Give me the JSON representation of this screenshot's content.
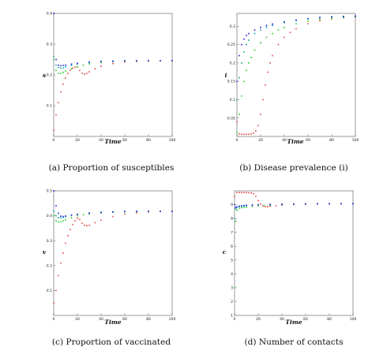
{
  "series_colors": {
    "red": "#e8504a",
    "green": "#33cc33",
    "blue": "#2a2ae0",
    "cyan": "#17a6a6"
  },
  "chart_data": [
    {
      "type": "scatter",
      "caption": "(a) Proportion of susceptibles",
      "xlabel": "Time",
      "ylabel": "s",
      "xlim": [
        0,
        100
      ],
      "ylim": [
        0,
        0.4
      ],
      "xticks": [
        0,
        20,
        40,
        60,
        80,
        100
      ],
      "yticks": [
        0.1,
        0.2,
        0.3,
        0.4
      ],
      "series": [
        {
          "color": "red",
          "x": [
            0,
            2,
            4,
            6,
            8,
            10,
            12,
            14,
            16,
            18,
            20,
            22,
            24,
            26,
            28,
            30,
            35,
            40,
            50,
            60,
            70,
            80,
            90,
            100
          ],
          "y": [
            0.02,
            0.07,
            0.11,
            0.145,
            0.17,
            0.19,
            0.205,
            0.215,
            0.222,
            0.225,
            0.226,
            0.215,
            0.205,
            0.202,
            0.205,
            0.21,
            0.22,
            0.228,
            0.237,
            0.242,
            0.244,
            0.245,
            0.246,
            0.246
          ]
        },
        {
          "color": "green",
          "x": [
            0,
            2,
            4,
            6,
            8,
            10,
            15,
            20,
            25,
            30,
            40,
            50,
            60,
            70,
            80,
            90,
            100
          ],
          "y": [
            0.25,
            0.215,
            0.205,
            0.205,
            0.208,
            0.212,
            0.22,
            0.226,
            0.232,
            0.236,
            0.24,
            0.243,
            0.245,
            0.246,
            0.246,
            0.246,
            0.246
          ]
        },
        {
          "color": "cyan",
          "x": [
            0,
            2,
            4,
            6,
            8,
            10,
            15,
            20,
            30,
            40,
            50,
            60,
            70,
            80,
            90,
            100
          ],
          "y": [
            0.26,
            0.232,
            0.224,
            0.222,
            0.223,
            0.226,
            0.231,
            0.235,
            0.24,
            0.243,
            0.245,
            0.246,
            0.246,
            0.246,
            0.246,
            0.246
          ]
        },
        {
          "color": "blue",
          "x": [
            0,
            2,
            4,
            6,
            8,
            10,
            15,
            20,
            30,
            40,
            50,
            60,
            70,
            80,
            90,
            100
          ],
          "y": [
            0.4,
            0.25,
            0.232,
            0.23,
            0.231,
            0.232,
            0.235,
            0.238,
            0.242,
            0.244,
            0.245,
            0.246,
            0.246,
            0.246,
            0.246,
            0.246
          ]
        }
      ]
    },
    {
      "type": "scatter",
      "caption": "(b) Disease prevalence (i)",
      "xlabel": "Time",
      "ylabel": "i",
      "xlim": [
        0,
        100
      ],
      "ylim": [
        0,
        0.335
      ],
      "xticks": [
        0,
        20,
        40,
        60,
        80,
        100
      ],
      "yticks": [
        0.05,
        0.1,
        0.15,
        0.2,
        0.25,
        0.3
      ],
      "series": [
        {
          "color": "red",
          "x": [
            0,
            2,
            4,
            6,
            8,
            10,
            12,
            14,
            16,
            18,
            20,
            22,
            24,
            26,
            28,
            30,
            35,
            40,
            45,
            50,
            60,
            70,
            80,
            90,
            100
          ],
          "y": [
            0.04,
            0.007,
            0.006,
            0.006,
            0.006,
            0.006,
            0.007,
            0.009,
            0.015,
            0.03,
            0.06,
            0.1,
            0.14,
            0.175,
            0.2,
            0.22,
            0.25,
            0.27,
            0.283,
            0.293,
            0.307,
            0.315,
            0.32,
            0.323,
            0.325
          ]
        },
        {
          "color": "green",
          "x": [
            0,
            2,
            4,
            6,
            8,
            10,
            12,
            15,
            20,
            25,
            30,
            35,
            40,
            50,
            60,
            70,
            80,
            90,
            100
          ],
          "y": [
            0.01,
            0.06,
            0.11,
            0.15,
            0.18,
            0.2,
            0.215,
            0.235,
            0.255,
            0.27,
            0.28,
            0.29,
            0.297,
            0.307,
            0.314,
            0.319,
            0.322,
            0.324,
            0.326
          ]
        },
        {
          "color": "cyan",
          "x": [
            0,
            2,
            4,
            6,
            8,
            10,
            15,
            20,
            25,
            30,
            40,
            50,
            60,
            70,
            80,
            90,
            100
          ],
          "y": [
            0.1,
            0.16,
            0.2,
            0.23,
            0.25,
            0.262,
            0.28,
            0.29,
            0.297,
            0.302,
            0.31,
            0.316,
            0.32,
            0.323,
            0.325,
            0.326,
            0.327
          ]
        },
        {
          "color": "blue",
          "x": [
            0,
            2,
            4,
            6,
            8,
            10,
            15,
            20,
            25,
            30,
            40,
            50,
            60,
            70,
            80,
            90,
            100
          ],
          "y": [
            0.15,
            0.22,
            0.25,
            0.265,
            0.275,
            0.28,
            0.29,
            0.297,
            0.302,
            0.306,
            0.312,
            0.317,
            0.321,
            0.324,
            0.326,
            0.327,
            0.328
          ]
        }
      ]
    },
    {
      "type": "scatter",
      "caption": "(c) Proportion of vaccinated",
      "xlabel": "Time",
      "ylabel": "v",
      "xlim": [
        0,
        100
      ],
      "ylim": [
        0,
        0.5
      ],
      "xticks": [
        0,
        20,
        40,
        60,
        80,
        100
      ],
      "yticks": [
        0.1,
        0.2,
        0.3,
        0.4,
        0.5
      ],
      "series": [
        {
          "color": "red",
          "x": [
            0,
            2,
            4,
            6,
            8,
            10,
            12,
            14,
            16,
            18,
            20,
            22,
            24,
            26,
            28,
            30,
            35,
            40,
            50,
            60,
            70,
            80,
            90,
            100
          ],
          "y": [
            0.05,
            0.1,
            0.16,
            0.21,
            0.25,
            0.29,
            0.32,
            0.345,
            0.365,
            0.38,
            0.39,
            0.385,
            0.37,
            0.362,
            0.36,
            0.362,
            0.372,
            0.382,
            0.397,
            0.407,
            0.412,
            0.415,
            0.417,
            0.418
          ]
        },
        {
          "color": "green",
          "x": [
            0,
            2,
            4,
            6,
            8,
            10,
            15,
            20,
            25,
            30,
            40,
            50,
            60,
            70,
            80,
            90,
            100
          ],
          "y": [
            0.4,
            0.38,
            0.375,
            0.376,
            0.38,
            0.384,
            0.392,
            0.4,
            0.404,
            0.407,
            0.411,
            0.414,
            0.416,
            0.417,
            0.418,
            0.418,
            0.418
          ]
        },
        {
          "color": "cyan",
          "x": [
            0,
            2,
            4,
            6,
            8,
            10,
            15,
            20,
            30,
            40,
            50,
            60,
            70,
            80,
            90,
            100
          ],
          "y": [
            0.42,
            0.4,
            0.392,
            0.391,
            0.393,
            0.396,
            0.401,
            0.405,
            0.41,
            0.413,
            0.415,
            0.417,
            0.418,
            0.418,
            0.418,
            0.418
          ]
        },
        {
          "color": "blue",
          "x": [
            0,
            2,
            4,
            6,
            8,
            10,
            15,
            20,
            30,
            40,
            50,
            60,
            70,
            80,
            90,
            100
          ],
          "y": [
            0.5,
            0.44,
            0.41,
            0.398,
            0.397,
            0.399,
            0.403,
            0.406,
            0.411,
            0.414,
            0.416,
            0.417,
            0.418,
            0.418,
            0.418,
            0.418
          ]
        }
      ]
    },
    {
      "type": "scatter",
      "caption": "(d) Number of contacts",
      "xlabel": "Time",
      "ylabel": "c",
      "xlim": [
        0,
        100
      ],
      "ylim": [
        1,
        10
      ],
      "xticks": [
        0,
        20,
        40,
        60,
        80,
        100
      ],
      "yticks": [
        1,
        2,
        3,
        4,
        5,
        6,
        7,
        8,
        9
      ],
      "series": [
        {
          "color": "red",
          "x": [
            0,
            2,
            4,
            6,
            8,
            10,
            12,
            14,
            16,
            18,
            20,
            22,
            24,
            26,
            28,
            30,
            35,
            40,
            50,
            60,
            70,
            80,
            90,
            100
          ],
          "y": [
            9.6,
            9.88,
            9.88,
            9.88,
            9.88,
            9.88,
            9.87,
            9.85,
            9.8,
            9.6,
            9.3,
            9.05,
            8.9,
            8.85,
            8.86,
            8.88,
            8.92,
            8.96,
            9.0,
            9.03,
            9.05,
            9.06,
            9.07,
            9.07
          ]
        },
        {
          "color": "green",
          "x": [
            0,
            1,
            2,
            4,
            6,
            8,
            10,
            15,
            20,
            25,
            30,
            40,
            50,
            60,
            70,
            80,
            90,
            100
          ],
          "y": [
            3.0,
            7.8,
            8.6,
            8.75,
            8.78,
            8.8,
            8.82,
            8.87,
            8.92,
            8.95,
            8.97,
            9.0,
            9.03,
            9.05,
            9.06,
            9.07,
            9.07,
            9.07
          ]
        },
        {
          "color": "cyan",
          "x": [
            0,
            1,
            2,
            4,
            6,
            8,
            10,
            15,
            20,
            30,
            40,
            50,
            60,
            70,
            80,
            90,
            100
          ],
          "y": [
            8.0,
            8.7,
            8.82,
            8.86,
            8.88,
            8.9,
            8.92,
            8.95,
            8.98,
            9.01,
            9.03,
            9.05,
            9.06,
            9.07,
            9.07,
            9.07,
            9.07
          ]
        },
        {
          "color": "blue",
          "x": [
            0,
            1,
            2,
            4,
            6,
            8,
            10,
            15,
            20,
            30,
            40,
            50,
            60,
            70,
            80,
            90,
            100
          ],
          "y": [
            9.0,
            8.8,
            8.85,
            8.9,
            8.92,
            8.94,
            8.96,
            8.98,
            9.0,
            9.02,
            9.04,
            9.05,
            9.06,
            9.07,
            9.07,
            9.07,
            9.07
          ]
        }
      ]
    }
  ]
}
